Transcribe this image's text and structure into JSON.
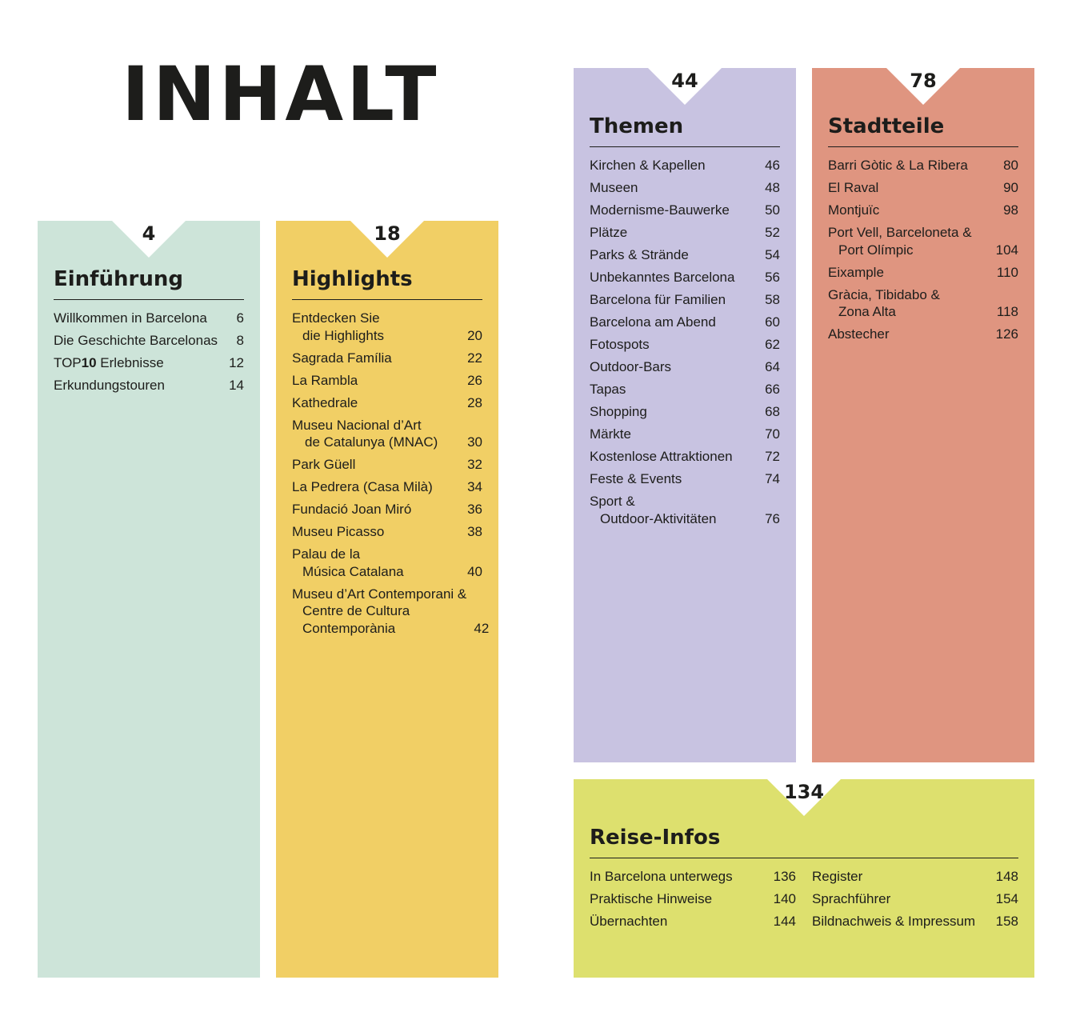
{
  "title": "INHALT",
  "colors": {
    "einfuehrung": "#cde4d9",
    "highlights": "#f1cf65",
    "themen": "#c8c3e1",
    "stadtteile": "#df9580",
    "reise_infos": "#dde06e"
  },
  "sections": {
    "einfuehrung": {
      "page": "4",
      "title": "Einführung",
      "items": [
        {
          "label": "Willkommen in Barcelona",
          "page": "6"
        },
        {
          "label": "Die Geschichte Barcelonas",
          "page": "8"
        },
        {
          "label_prefix": "TOP",
          "label_bold": "10",
          "label_suffix": " Erlebnisse",
          "page": "12"
        },
        {
          "label": "Erkundungstouren",
          "page": "14"
        }
      ]
    },
    "highlights": {
      "page": "18",
      "title": "Highlights",
      "items": [
        {
          "label": "Entdecken Sie",
          "label2": "die Highlights",
          "page": "20"
        },
        {
          "label": "Sagrada Família",
          "page": "22"
        },
        {
          "label": "La Rambla",
          "page": "26"
        },
        {
          "label": "Kathedrale",
          "page": "28"
        },
        {
          "label": "Museu Nacional d’Art",
          "label2": "de Catalunya (MNAC)",
          "page": "30"
        },
        {
          "label": "Park Güell",
          "page": "32"
        },
        {
          "label": "La Pedrera (Casa Milà)",
          "page": "34"
        },
        {
          "label": "Fundació Joan Miró",
          "page": "36"
        },
        {
          "label": "Museu Picasso",
          "page": "38"
        },
        {
          "label": "Palau de la",
          "label2": "Música Catalana",
          "page": "40"
        },
        {
          "label": "Museu d’Art Contemporani &",
          "label2": "Centre de Cultura",
          "label3": "Contemporània",
          "page": "42"
        }
      ]
    },
    "themen": {
      "page": "44",
      "title": "Themen",
      "items": [
        {
          "label": "Kirchen & Kapellen",
          "page": "46"
        },
        {
          "label": "Museen",
          "page": "48"
        },
        {
          "label": "Modernisme-Bauwerke",
          "page": "50"
        },
        {
          "label": "Plätze",
          "page": "52"
        },
        {
          "label": "Parks & Strände",
          "page": "54"
        },
        {
          "label": "Unbekanntes Barcelona",
          "page": "56"
        },
        {
          "label": "Barcelona für Familien",
          "page": "58"
        },
        {
          "label": "Barcelona am Abend",
          "page": "60"
        },
        {
          "label": "Fotospots",
          "page": "62"
        },
        {
          "label": "Outdoor-Bars",
          "page": "64"
        },
        {
          "label": "Tapas",
          "page": "66"
        },
        {
          "label": "Shopping",
          "page": "68"
        },
        {
          "label": "Märkte",
          "page": "70"
        },
        {
          "label": "Kostenlose Attraktionen",
          "page": "72"
        },
        {
          "label": "Feste & Events",
          "page": "74"
        },
        {
          "label": "Sport &",
          "label2": "Outdoor-Aktivitäten",
          "page": "76"
        }
      ]
    },
    "stadtteile": {
      "page": "78",
      "title": "Stadtteile",
      "items": [
        {
          "label": "Barri Gòtic & La Ribera",
          "page": "80"
        },
        {
          "label": "El Raval",
          "page": "90"
        },
        {
          "label": "Montjuïc",
          "page": "98"
        },
        {
          "label": "Port Vell, Barceloneta &",
          "label2": "Port Olímpic",
          "page": "104"
        },
        {
          "label": "Eixample",
          "page": "110"
        },
        {
          "label": "Gràcia, Tibidabo &",
          "label2": "Zona Alta",
          "page": "118"
        },
        {
          "label": "Abstecher",
          "page": "126"
        }
      ]
    },
    "reise_infos": {
      "page": "134",
      "title": "Reise-Infos",
      "col1": [
        {
          "label": "In Barcelona unterwegs",
          "page": "136"
        },
        {
          "label": "Praktische Hinweise",
          "page": "140"
        },
        {
          "label": "Übernachten",
          "page": "144"
        }
      ],
      "col2": [
        {
          "label": "Register",
          "page": "148"
        },
        {
          "label": "Sprachführer",
          "page": "154"
        },
        {
          "label": "Bildnachweis & Impressum",
          "page": "158"
        }
      ]
    }
  }
}
